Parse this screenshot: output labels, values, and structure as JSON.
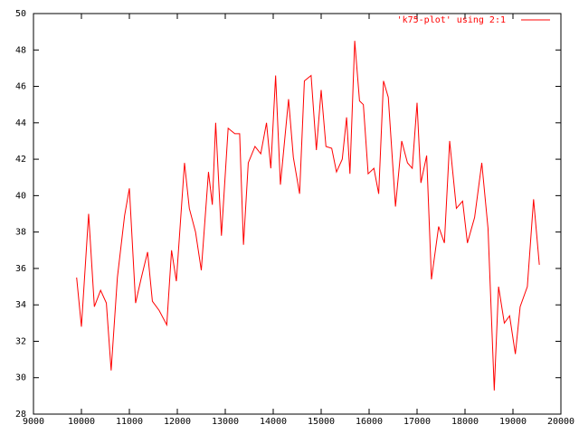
{
  "chart_data": {
    "type": "line",
    "x": [
      9900,
      10000,
      10150,
      10270,
      10400,
      10520,
      10620,
      10750,
      10900,
      11000,
      11130,
      11250,
      11380,
      11480,
      11620,
      11780,
      11880,
      11980,
      12150,
      12250,
      12380,
      12500,
      12650,
      12730,
      12800,
      12920,
      13060,
      13200,
      13300,
      13380,
      13480,
      13620,
      13740,
      13860,
      13950,
      14050,
      14150,
      14320,
      14420,
      14550,
      14650,
      14790,
      14900,
      15000,
      15100,
      15220,
      15320,
      15440,
      15530,
      15600,
      15700,
      15800,
      15880,
      15980,
      16100,
      16200,
      16300,
      16400,
      16550,
      16680,
      16800,
      16900,
      17000,
      17080,
      17200,
      17300,
      17450,
      17570,
      17680,
      17820,
      17950,
      18050,
      18200,
      18350,
      18480,
      18610,
      18700,
      18820,
      18930,
      19050,
      19150,
      19300,
      19430,
      19550
    ],
    "series": [
      {
        "name": "'k75-plot' using 2:1",
        "color": "#ff0000",
        "values": [
          35.5,
          32.8,
          39.0,
          33.9,
          34.8,
          34.1,
          30.4,
          35.5,
          38.9,
          40.4,
          34.1,
          35.5,
          36.9,
          34.2,
          33.7,
          32.9,
          37.0,
          35.3,
          41.8,
          39.3,
          38.0,
          35.9,
          41.3,
          39.5,
          44.0,
          37.8,
          43.7,
          43.4,
          43.4,
          37.3,
          41.8,
          42.7,
          42.3,
          44.0,
          41.5,
          46.6,
          40.6,
          45.3,
          42.1,
          40.1,
          46.3,
          46.6,
          42.5,
          45.8,
          42.7,
          42.6,
          41.3,
          42.0,
          44.3,
          41.2,
          48.5,
          45.2,
          45.0,
          41.2,
          41.5,
          40.1,
          46.3,
          45.4,
          39.4,
          43.0,
          41.8,
          41.5,
          45.1,
          40.7,
          42.2,
          35.4,
          38.3,
          37.4,
          43.0,
          39.3,
          39.7,
          37.4,
          38.8,
          41.8,
          38.2,
          29.3,
          35.0,
          33.0,
          33.4,
          31.3,
          33.9,
          35.0,
          39.8,
          36.2
        ]
      }
    ],
    "xlim": [
      9000,
      20000
    ],
    "xticks": [
      9000,
      10000,
      11000,
      12000,
      13000,
      14000,
      15000,
      16000,
      17000,
      18000,
      19000,
      20000
    ],
    "ylim": [
      28,
      50
    ],
    "yticks": [
      28,
      30,
      32,
      34,
      36,
      38,
      40,
      42,
      44,
      46,
      48,
      50
    ],
    "legend": "top-right"
  }
}
